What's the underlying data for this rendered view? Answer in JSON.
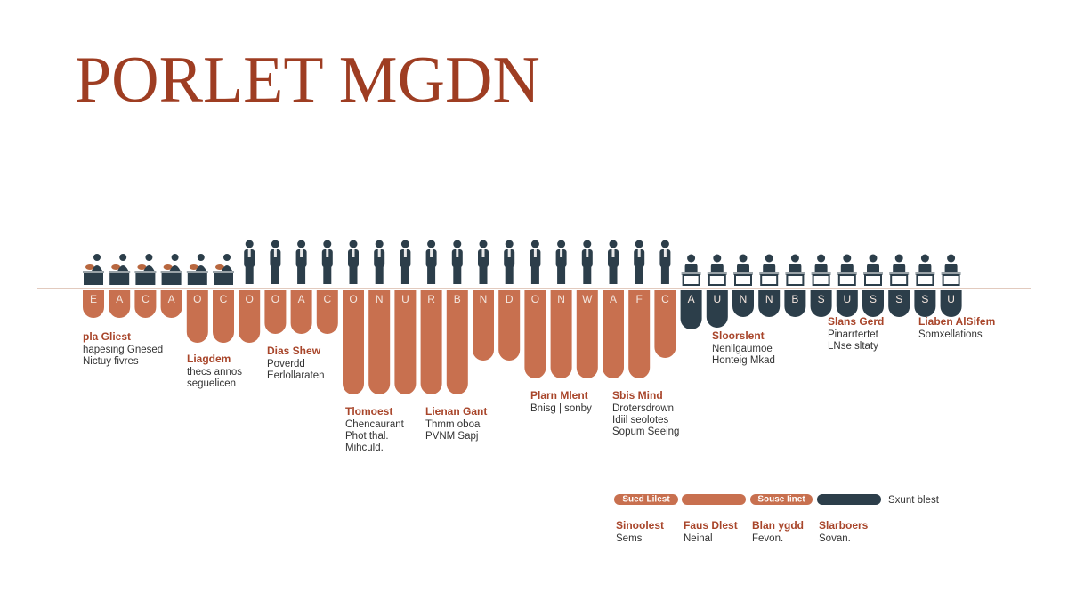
{
  "title": "PORLET MGDN",
  "columns": [
    "E",
    "A",
    "C",
    "A",
    "O",
    "C",
    "O",
    "O",
    "A",
    "C",
    "O",
    "N",
    "U",
    "R",
    "B",
    "N",
    "D",
    "O",
    "N",
    "W",
    "A",
    "F",
    "C",
    "A",
    "U",
    "N",
    "N",
    "B",
    "S",
    "U",
    "S",
    "S",
    "S",
    "U"
  ],
  "annotations": [
    {
      "title": "pla Gliest",
      "lines": [
        "hapesing Gnesed",
        "Nictuy fivres"
      ]
    },
    {
      "title": "Liagdem",
      "lines": [
        "thecs annos",
        "seguelicen"
      ]
    },
    {
      "title": "Dias Shew",
      "lines": [
        "Poverdd",
        "Eerlollaraten"
      ]
    },
    {
      "title": "Tlomoest",
      "lines": [
        "Chencaurant",
        "Phot thal.",
        "Mihculd."
      ]
    },
    {
      "title": "Lienan Gant",
      "lines": [
        "Thmm oboa",
        "PVNM Sapj"
      ]
    },
    {
      "title": "Plarn Mlent",
      "lines": [
        "Bnisg | sonby"
      ]
    },
    {
      "title": "Sbis Mind",
      "lines": [
        "Drotersdrown",
        "Idiil seolotes",
        "Sopum Seeing"
      ]
    },
    {
      "title": "Sloorslent",
      "lines": [
        "Nenllgaumoe",
        "Honteig Mkad"
      ]
    },
    {
      "title": "Slans Gerd",
      "lines": [
        "Pinarrtertet",
        "LNse sltaty"
      ]
    },
    {
      "title": "Liaben AlSifem",
      "lines": [
        "Somxellations"
      ]
    }
  ],
  "legend": {
    "pills": [
      "Sued Lilest",
      "Souse Iinet"
    ],
    "label": "Sxunt blest"
  },
  "footer": [
    {
      "title": "Sinoolest",
      "text": "Sems"
    },
    {
      "title": "Faus Dlest",
      "text": "Neinal"
    },
    {
      "title": "Blan ygdd",
      "text": "Fevon."
    },
    {
      "title": "Slarboers",
      "text": "Sovan."
    }
  ]
}
